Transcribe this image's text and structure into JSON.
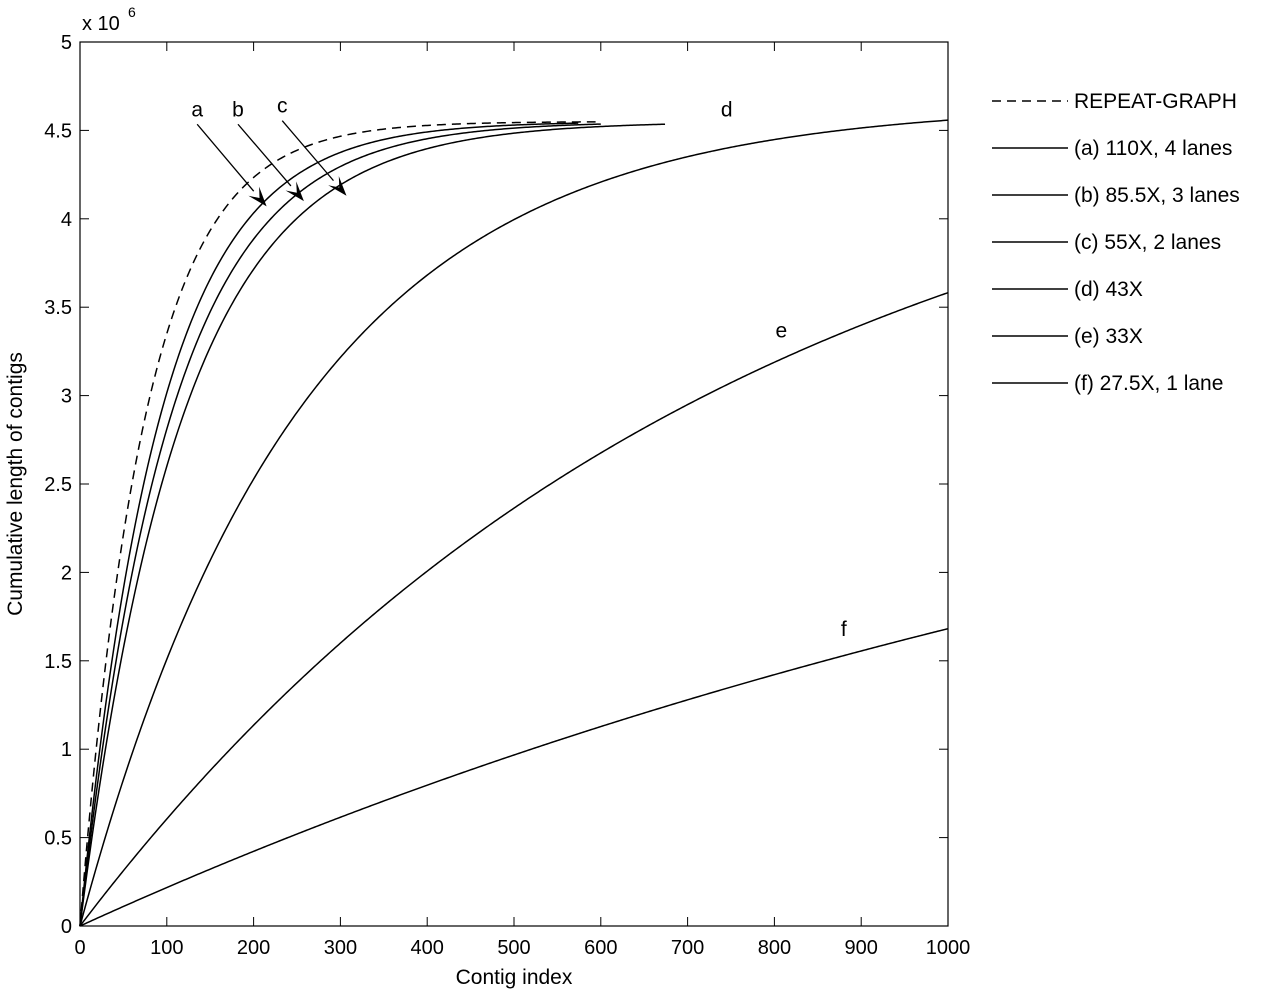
{
  "chart_data": {
    "type": "line",
    "xlabel": "Contig index",
    "ylabel": "Cumulative length of contigs",
    "y_multiplier": "x 10",
    "y_multiplier_exponent": "6",
    "xlim": [
      0,
      1000
    ],
    "ylim": [
      0,
      5
    ],
    "x_ticks": [
      "0",
      "100",
      "200",
      "300",
      "400",
      "500",
      "600",
      "700",
      "800",
      "900",
      "1000"
    ],
    "y_ticks": [
      "0",
      "0.5",
      "1",
      "1.5",
      "2",
      "2.5",
      "3",
      "3.5",
      "4",
      "4.5",
      "5"
    ],
    "grid": false,
    "legend_position": "outside-right",
    "colors": {
      "line": "#000000",
      "background": "#ffffff"
    },
    "series": [
      {
        "name": "REPEAT-GRAPH",
        "style": "dashed",
        "x_end": 595,
        "asymptote": 4.55,
        "scale": 75
      },
      {
        "name": "(a) 110X, 4 lanes",
        "style": "solid",
        "x_end": 575,
        "asymptote": 4.55,
        "scale": 92
      },
      {
        "name": "(b) 85.5X, 3 lanes",
        "style": "solid",
        "x_end": 600,
        "asymptote": 4.55,
        "scale": 104
      },
      {
        "name": "(c) 55X, 2 lanes",
        "style": "solid",
        "x_end": 675,
        "asymptote": 4.55,
        "scale": 118
      },
      {
        "name": "(d) 43X",
        "style": "solid",
        "x_end": 1000,
        "asymptote": 4.65,
        "scale": 255
      },
      {
        "name": "(e) 33X",
        "style": "solid",
        "x_end": 1000,
        "asymptote": 4.88,
        "scale": 755
      },
      {
        "name": "(f) 27.5X, 1 lane",
        "style": "solid",
        "x_end": 1000,
        "asymptote": 3.7,
        "scale": 1650
      }
    ],
    "annotations": [
      {
        "text": "a",
        "x": 135,
        "y": 4.58,
        "arrow_to": [
          215,
          4.07
        ]
      },
      {
        "text": "b",
        "x": 182,
        "y": 4.58,
        "arrow_to": [
          258,
          4.1
        ]
      },
      {
        "text": "c",
        "x": 233,
        "y": 4.6,
        "arrow_to": [
          307,
          4.13
        ]
      },
      {
        "text": "d",
        "x": 745,
        "y": 4.58
      },
      {
        "text": "e",
        "x": 808,
        "y": 3.33
      },
      {
        "text": "f",
        "x": 880,
        "y": 1.64
      }
    ]
  }
}
